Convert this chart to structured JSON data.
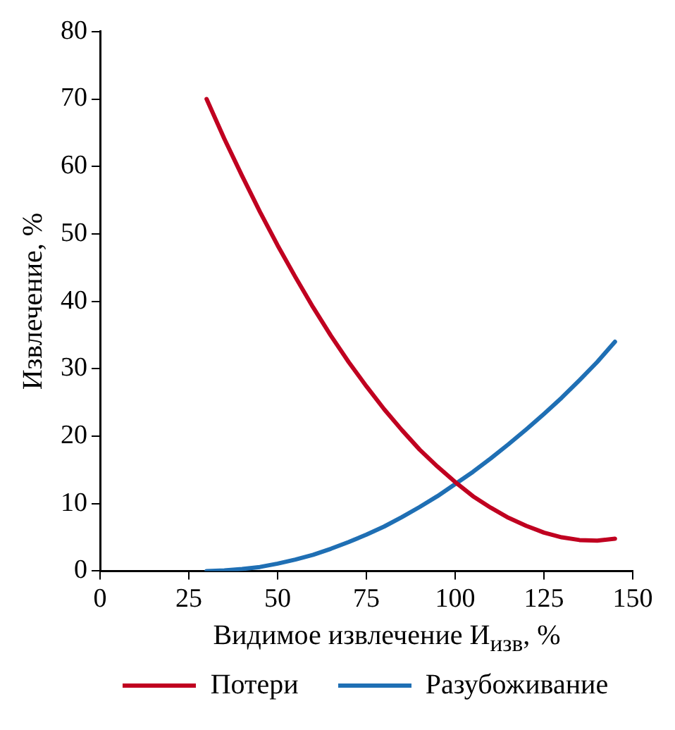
{
  "chart_data": {
    "type": "line",
    "xlabel": "Видимое извлечение И$_{изв}$, %",
    "ylabel": "Извлечение, %",
    "x": [
      30,
      35,
      40,
      45,
      50,
      55,
      60,
      65,
      70,
      75,
      80,
      85,
      90,
      95,
      100,
      105,
      110,
      115,
      120,
      125,
      130,
      135,
      140,
      145
    ],
    "series": [
      {
        "name": "Потери",
        "color": "#c00020",
        "values": [
          70.0,
          64.1,
          58.6,
          53.3,
          48.3,
          43.6,
          39.1,
          34.9,
          31.0,
          27.4,
          24.0,
          20.9,
          18.0,
          15.5,
          13.2,
          11.1,
          9.4,
          7.9,
          6.7,
          5.7,
          5.0,
          4.6,
          4.5,
          4.8
        ]
      },
      {
        "name": "Разубоживание",
        "color": "#1f6fb4",
        "values": [
          0,
          0.1,
          0.3,
          0.6,
          1.1,
          1.7,
          2.4,
          3.3,
          4.3,
          5.4,
          6.6,
          8.0,
          9.5,
          11.1,
          12.9,
          14.7,
          16.7,
          18.8,
          21.0,
          23.3,
          25.7,
          28.3,
          31.0,
          34.0
        ]
      }
    ],
    "xlim": [
      0,
      150
    ],
    "xticks": [
      0,
      25,
      50,
      75,
      100,
      125,
      150
    ],
    "ylim": [
      0,
      80
    ],
    "yticks": [
      0,
      10,
      20,
      30,
      40,
      50,
      60,
      70,
      80
    ],
    "grid": false,
    "legend": "bottom",
    "marker": "none",
    "line_style": "solid"
  }
}
